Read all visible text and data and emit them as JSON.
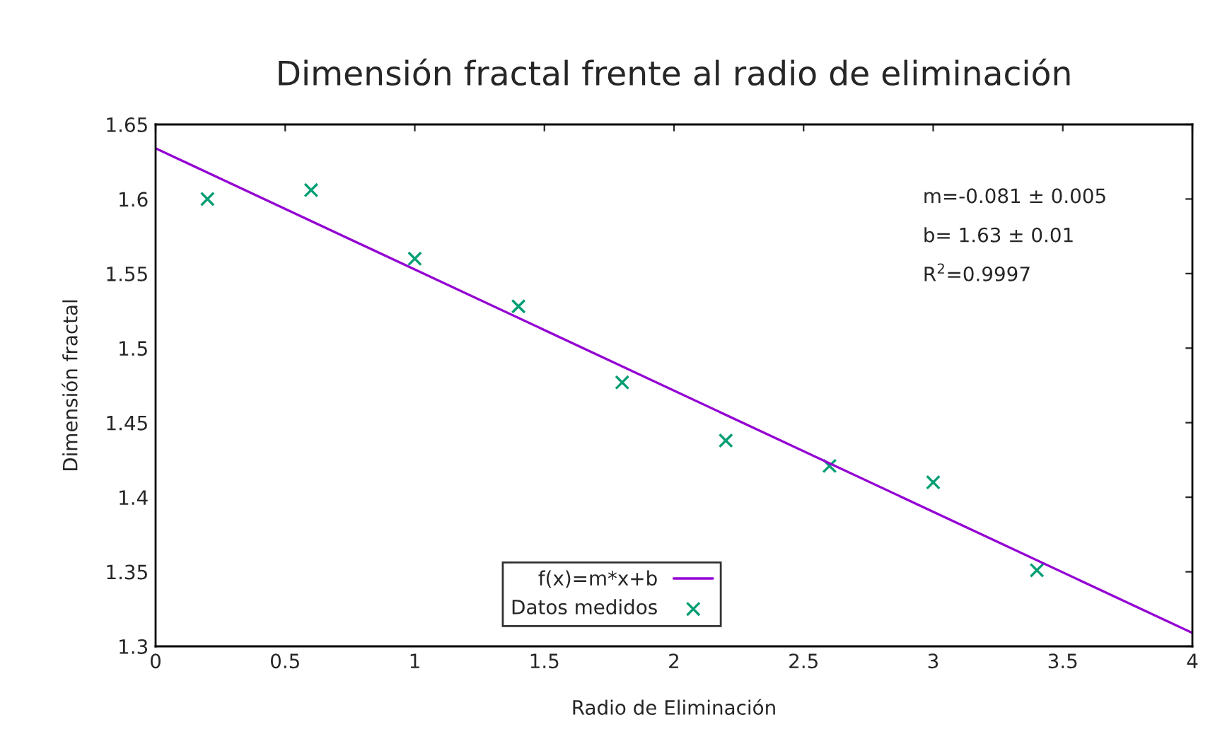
{
  "chart_data": {
    "type": "scatter",
    "title": "Dimensión fractal frente al radio de eliminación",
    "xlabel": "Radio de Eliminación",
    "ylabel": "Dimensión fractal",
    "xlim": [
      0,
      4
    ],
    "ylim": [
      1.3,
      1.65
    ],
    "xticks": [
      0,
      0.5,
      1,
      1.5,
      2,
      2.5,
      3,
      3.5,
      4
    ],
    "yticks": [
      1.3,
      1.35,
      1.4,
      1.45,
      1.5,
      1.55,
      1.6,
      1.65
    ],
    "grid": false,
    "legend": "bottom",
    "series": [
      {
        "name": "f(x)=m*x+b",
        "type": "line",
        "color": "#9400d3",
        "marker": "none",
        "line_style": "solid",
        "x": [
          0,
          4
        ],
        "values": [
          1.634,
          1.309
        ]
      },
      {
        "name": "Datos medidos",
        "color": "#009e73",
        "marker": "cross",
        "x": [
          0.2,
          0.6,
          1.0,
          1.4,
          1.8,
          2.2,
          2.6,
          3.0,
          3.4
        ],
        "values": [
          1.6,
          1.606,
          1.56,
          1.528,
          1.477,
          1.438,
          1.421,
          1.41,
          1.351
        ]
      }
    ],
    "annotations": [
      "m=-0.081 ± 0.005",
      "b= 1.63 ± 0.01",
      "R$^{2}$=0.9997"
    ]
  }
}
